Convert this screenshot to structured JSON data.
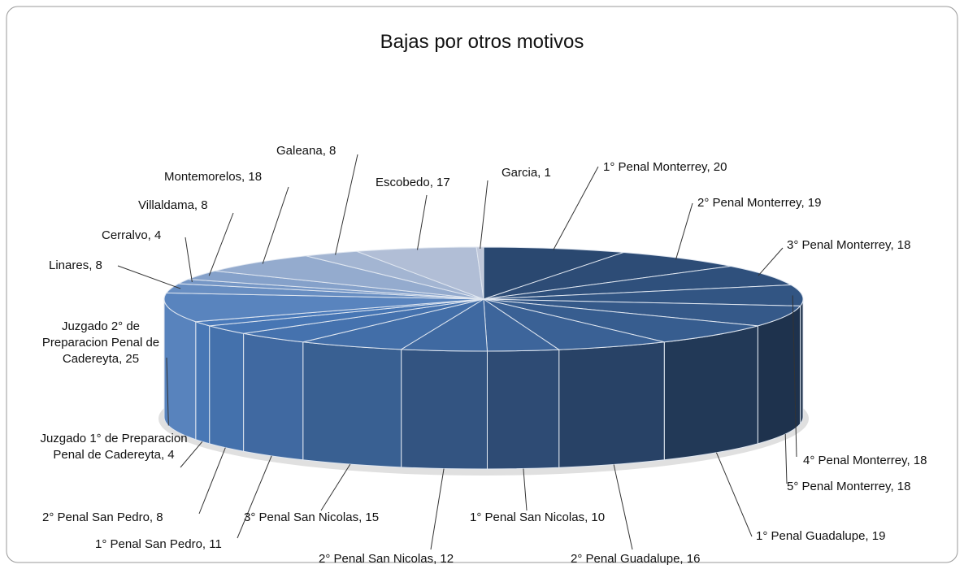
{
  "chart_data": {
    "type": "pie",
    "title": "Bajas por otros motivos",
    "values": [
      20,
      19,
      18,
      18,
      18,
      19,
      16,
      10,
      12,
      15,
      11,
      8,
      4,
      25,
      8,
      4,
      8,
      18,
      8,
      17,
      1
    ],
    "value_labels": [
      "1° Penal Monterrey, 20",
      "2° Penal Monterrey, 19",
      "3° Penal Monterrey, 18",
      "4° Penal Monterrey, 18",
      "5° Penal Monterrey, 18",
      "1° Penal Guadalupe, 19",
      "2° Penal Guadalupe, 16",
      "1° Penal San Nicolas, 10",
      "2° Penal San Nicolas, 12",
      "3° Penal San Nicolas, 15",
      "1° Penal San Pedro, 11",
      "2° Penal San Pedro, 8",
      "Juzgado 1° de Preparacion Penal de Cadereyta, 4",
      "Juzgado 2° de Preparacion Penal de Cadereyta, 25",
      "Linares, 8",
      "Cerralvo, 4",
      "Villaldama, 8",
      "Montemorelos, 18",
      "Galeana, 8",
      "Escobedo, 17",
      "Garcia, 1"
    ]
  }
}
